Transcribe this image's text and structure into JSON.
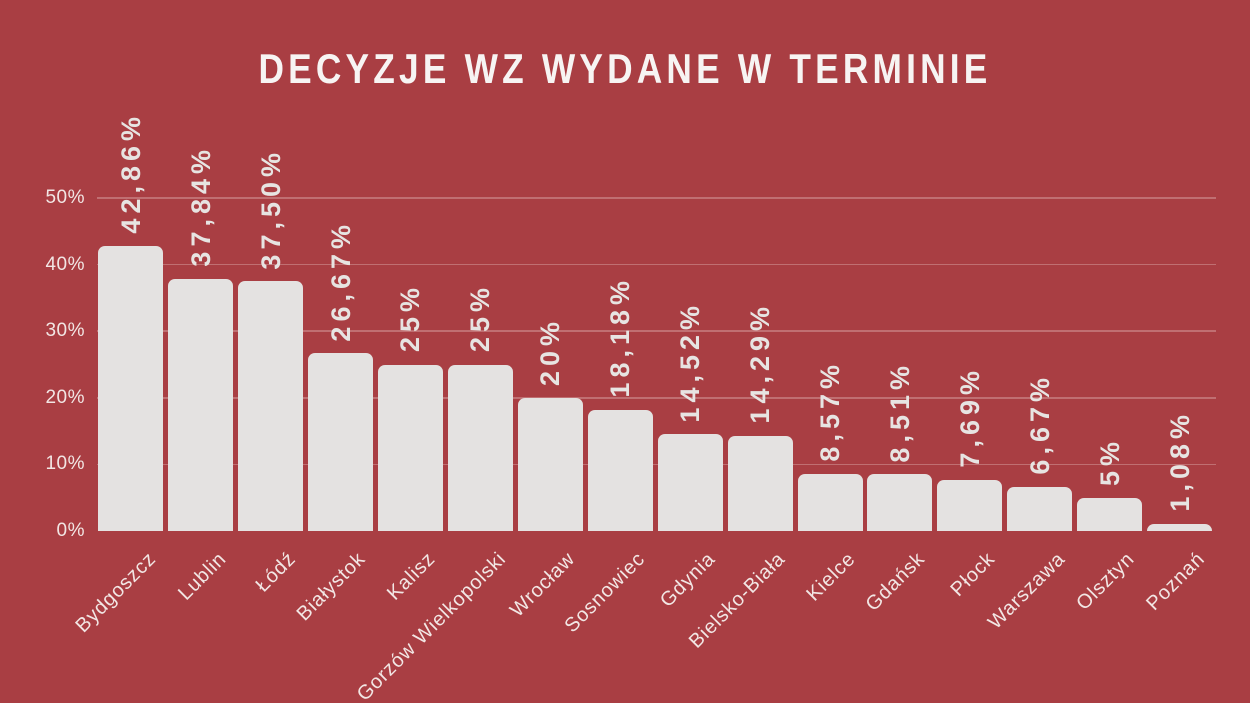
{
  "chart_data": {
    "type": "bar",
    "title": "DECYZJE WZ WYDANE W TERMINIE",
    "categories": [
      "Bydgoszcz",
      "Lublin",
      "Łódź",
      "Białystok",
      "Kalisz",
      "Gorzów Wielkopolski",
      "Wrocław",
      "Sosnowiec",
      "Gdynia",
      "Bielsko-Biała",
      "Kielce",
      "Gdańsk",
      "Płock",
      "Warszawa",
      "Olsztyn",
      "Poznań"
    ],
    "values": [
      42.86,
      37.84,
      37.5,
      26.67,
      25,
      25,
      20,
      18.18,
      14.52,
      14.29,
      8.57,
      8.51,
      7.69,
      6.67,
      5,
      1.08
    ],
    "value_labels": [
      "42,86%",
      "37,84%",
      "37,50%",
      "26,67%",
      "25%",
      "25%",
      "20%",
      "18,18%",
      "14,52%",
      "14,29%",
      "8,57%",
      "8,51%",
      "7,69%",
      "6,67%",
      "5%",
      "1,08%"
    ],
    "xlabel": "",
    "ylabel": "",
    "y_axis": {
      "ticks": [
        0,
        10,
        20,
        30,
        40,
        50
      ],
      "tick_labels": [
        "0%",
        "10%",
        "20%",
        "30%",
        "40%",
        "50%"
      ],
      "min": 0,
      "max": 50
    },
    "grid": true,
    "legend": false,
    "value_label_rotation_deg": -90,
    "x_label_rotation_deg": -45,
    "colors": {
      "background": "#A93E43",
      "bar": "#E4E2E1",
      "gridline": "rgba(242,216,214,0.32)",
      "axis_text": "#F2E6E4",
      "value_text": "#E7E4E2",
      "title_text": "#F7F4F3"
    }
  }
}
